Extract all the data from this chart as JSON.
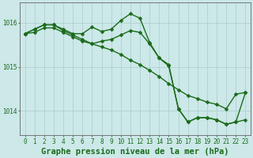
{
  "title": "Graphe pression niveau de la mer (hPa)",
  "background_color": "#cce8e8",
  "line_color": "#1a6b1a",
  "grid_color": "#aacccc",
  "series1": {
    "x": [
      0,
      1,
      2,
      3,
      4,
      5,
      6,
      7,
      8,
      9,
      10,
      11,
      12,
      13,
      14,
      15,
      16,
      17,
      18,
      19,
      20,
      21,
      22,
      23
    ],
    "y": [
      1015.75,
      1015.85,
      1015.95,
      1015.95,
      1015.85,
      1015.75,
      1015.75,
      1015.9,
      1015.8,
      1015.85,
      1016.05,
      1016.2,
      1016.1,
      1015.55,
      1015.2,
      1015.05,
      1014.05,
      1013.75,
      1013.85,
      1013.85,
      1013.8,
      1013.7,
      1013.75,
      1013.8
    ]
  },
  "series2": {
    "x": [
      0,
      1,
      2,
      3,
      4,
      5,
      6,
      7,
      8,
      9,
      10,
      11,
      12,
      13,
      14,
      15,
      16,
      17,
      18,
      19,
      20,
      21,
      22,
      23
    ],
    "y": [
      1015.75,
      1015.78,
      1015.88,
      1015.88,
      1015.78,
      1015.68,
      1015.58,
      1015.52,
      1015.45,
      1015.38,
      1015.28,
      1015.15,
      1015.05,
      1014.92,
      1014.78,
      1014.62,
      1014.48,
      1014.35,
      1014.28,
      1014.2,
      1014.15,
      1014.05,
      1014.38,
      1014.42
    ]
  },
  "series3": {
    "x": [
      0,
      1,
      2,
      3,
      4,
      5,
      6,
      7,
      8,
      9,
      10,
      11,
      12,
      13,
      14,
      15,
      16,
      17,
      18,
      19,
      20,
      21,
      22,
      23
    ],
    "y": [
      1015.75,
      1015.85,
      1015.95,
      1015.95,
      1015.82,
      1015.72,
      1015.62,
      1015.52,
      1015.58,
      1015.62,
      1015.72,
      1015.82,
      1015.78,
      1015.52,
      1015.2,
      1015.02,
      1014.05,
      1013.75,
      1013.85,
      1013.85,
      1013.8,
      1013.7,
      1013.75,
      1014.42
    ]
  },
  "yticks": [
    1014,
    1015,
    1016
  ],
  "xticks": [
    0,
    1,
    2,
    3,
    4,
    5,
    6,
    7,
    8,
    9,
    10,
    11,
    12,
    13,
    14,
    15,
    16,
    17,
    18,
    19,
    20,
    21,
    22,
    23
  ],
  "ylim": [
    1013.45,
    1016.45
  ],
  "xlim": [
    -0.5,
    23.5
  ],
  "markersize": 2.5,
  "linewidth": 1.0,
  "title_fontsize": 7.5,
  "tick_fontsize": 5.5,
  "axis_color": "#666666"
}
